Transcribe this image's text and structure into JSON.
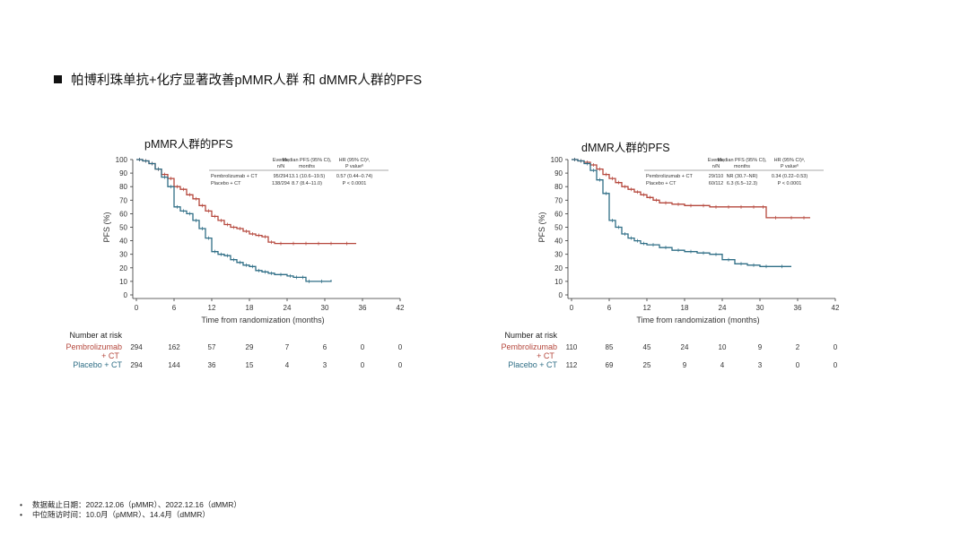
{
  "slide": {
    "title": "帕博利珠单抗+化疗显著改善pMMR人群 和 dMMR人群的PFS",
    "footnotes": [
      "数据截止日期：2022.12.06（pMMR）、2022.12.16（dMMR）",
      "中位随访时间：10.0月（pMMR）、14.4月（dMMR）"
    ]
  },
  "colors": {
    "pembro": "#b5473c",
    "placebo": "#2f6e86",
    "axis": "#333333"
  },
  "chart_data": [
    {
      "type": "line",
      "title": "pMMR人群的PFS",
      "xlabel": "Time from randomization (months)",
      "ylabel": "PFS (%)",
      "xlim": [
        0,
        42
      ],
      "ylim": [
        0,
        100
      ],
      "xticks": [
        0,
        6,
        12,
        18,
        24,
        30,
        36,
        42
      ],
      "yticks": [
        0,
        10,
        20,
        30,
        40,
        50,
        60,
        70,
        80,
        90,
        100
      ],
      "legend": {
        "headers": [
          "Events, n/N",
          "Median PFS (95% CI), months",
          "HR (95% CI)ᵃ, P valueᵇ"
        ],
        "rows": [
          {
            "name": "Pembrolizumab + CT",
            "events": "95/294",
            "median": "13.1 (10.6–19.5)",
            "hr": "0.57 (0.44–0.74)"
          },
          {
            "name": "Placebo + CT",
            "events": "138/294",
            "median": "8.7 (8.4–11.0)",
            "hr": "P < 0.0001"
          }
        ]
      },
      "series": [
        {
          "name": "Pembrolizumab + CT",
          "color_key": "pembro",
          "x": [
            0,
            1,
            2,
            3,
            4,
            5,
            6,
            7,
            8,
            9,
            10,
            11,
            12,
            13,
            14,
            15,
            16,
            17,
            18,
            19,
            20,
            21,
            22,
            24,
            26,
            28,
            30,
            32,
            35
          ],
          "y": [
            100,
            99,
            97,
            93,
            89,
            86,
            80,
            78,
            74,
            71,
            66,
            62,
            58,
            55,
            52,
            50,
            49,
            47,
            45,
            44,
            43,
            39,
            38,
            38,
            38,
            38,
            38,
            38,
            38
          ]
        },
        {
          "name": "Placebo + CT",
          "color_key": "placebo",
          "x": [
            0,
            1,
            2,
            3,
            4,
            5,
            6,
            7,
            8,
            9,
            10,
            11,
            12,
            13,
            14,
            15,
            16,
            17,
            18,
            19,
            20,
            21,
            22,
            24,
            25,
            26,
            27,
            28,
            31
          ],
          "y": [
            100,
            99,
            97,
            93,
            87,
            80,
            65,
            62,
            60,
            55,
            49,
            42,
            32,
            30,
            29,
            26,
            24,
            22,
            21,
            18,
            17,
            16,
            15,
            14,
            13,
            13,
            10,
            10,
            11
          ]
        }
      ],
      "risk_table": {
        "header": "Number at risk",
        "times": [
          0,
          6,
          12,
          18,
          24,
          30,
          36,
          42
        ],
        "rows": [
          {
            "label_line1": "Pembrolizumab",
            "label_line2": "+ CT",
            "color_key": "pembro",
            "values": [
              "294",
              "162",
              "57",
              "29",
              "7",
              "6",
              "0",
              "0"
            ]
          },
          {
            "label_line1": "Placebo + CT",
            "label_line2": "",
            "color_key": "placebo",
            "values": [
              "294",
              "144",
              "36",
              "15",
              "4",
              "3",
              "0",
              "0"
            ]
          }
        ]
      }
    },
    {
      "type": "line",
      "title": "dMMR人群的PFS",
      "xlabel": "Time from randomization (months)",
      "ylabel": "PFS (%)",
      "xlim": [
        0,
        42
      ],
      "ylim": [
        0,
        100
      ],
      "xticks": [
        0,
        6,
        12,
        18,
        24,
        30,
        36,
        42
      ],
      "yticks": [
        0,
        10,
        20,
        30,
        40,
        50,
        60,
        70,
        80,
        90,
        100
      ],
      "legend": {
        "headers": [
          "Events, n/N",
          "Median PFS (95% CI), months",
          "HR (95% CI)ᵃ, P valueᵇ"
        ],
        "rows": [
          {
            "name": "Pembrolizumab + CT",
            "events": "29/110",
            "median": "NR (30.7–NR)",
            "hr": "0.34 (0.22–0.53)"
          },
          {
            "name": "Placebo + CT",
            "events": "60/112",
            "median": "6.3 (6.5–12.3)",
            "hr": "P < 0.0001"
          }
        ]
      },
      "series": [
        {
          "name": "Pembrolizumab + CT",
          "color_key": "pembro",
          "x": [
            0,
            1,
            2,
            3,
            4,
            5,
            6,
            7,
            8,
            9,
            10,
            11,
            12,
            13,
            14,
            16,
            18,
            20,
            22,
            24,
            26,
            28,
            30,
            31,
            34,
            36,
            38
          ],
          "y": [
            100,
            99,
            98,
            96,
            93,
            89,
            86,
            83,
            80,
            78,
            76,
            74,
            72,
            70,
            68,
            67,
            66,
            66,
            65,
            65,
            65,
            65,
            65,
            57,
            57,
            57,
            57
          ]
        },
        {
          "name": "Placebo + CT",
          "color_key": "placebo",
          "x": [
            0,
            1,
            2,
            3,
            4,
            5,
            6,
            7,
            8,
            9,
            10,
            11,
            12,
            14,
            16,
            18,
            20,
            22,
            24,
            26,
            28,
            30,
            32,
            35
          ],
          "y": [
            100,
            99,
            97,
            92,
            85,
            75,
            55,
            50,
            45,
            42,
            40,
            38,
            37,
            35,
            33,
            32,
            31,
            30,
            26,
            23,
            22,
            21,
            21,
            21
          ]
        }
      ],
      "risk_table": {
        "header": "Number at risk",
        "times": [
          0,
          6,
          12,
          18,
          24,
          30,
          36,
          42
        ],
        "rows": [
          {
            "label_line1": "Pembrolizumab",
            "label_line2": "+ CT",
            "color_key": "pembro",
            "values": [
              "110",
              "85",
              "45",
              "24",
              "10",
              "9",
              "2",
              "0"
            ]
          },
          {
            "label_line1": "Placebo + CT",
            "label_line2": "",
            "color_key": "placebo",
            "values": [
              "112",
              "69",
              "25",
              "9",
              "4",
              "3",
              "0",
              "0"
            ]
          }
        ]
      }
    }
  ]
}
